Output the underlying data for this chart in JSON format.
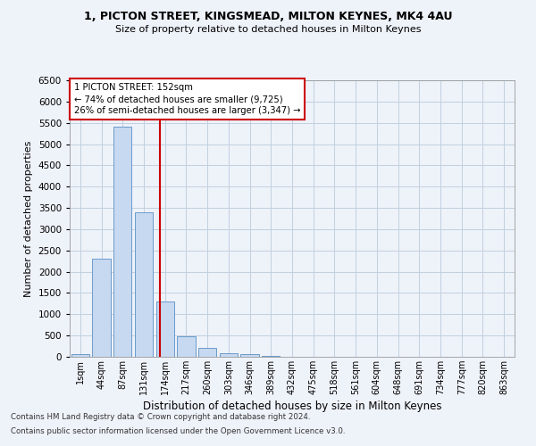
{
  "title": "1, PICTON STREET, KINGSMEAD, MILTON KEYNES, MK4 4AU",
  "subtitle": "Size of property relative to detached houses in Milton Keynes",
  "xlabel": "Distribution of detached houses by size in Milton Keynes",
  "ylabel": "Number of detached properties",
  "bin_labels": [
    "1sqm",
    "44sqm",
    "87sqm",
    "131sqm",
    "174sqm",
    "217sqm",
    "260sqm",
    "303sqm",
    "346sqm",
    "389sqm",
    "432sqm",
    "475sqm",
    "518sqm",
    "561sqm",
    "604sqm",
    "648sqm",
    "691sqm",
    "734sqm",
    "777sqm",
    "820sqm",
    "863sqm"
  ],
  "bar_values": [
    70,
    2300,
    5400,
    3400,
    1300,
    480,
    200,
    90,
    70,
    30,
    10,
    5,
    3,
    2,
    1,
    1,
    0,
    0,
    0,
    0,
    0
  ],
  "bar_color": "#c6d9f0",
  "bar_edgecolor": "#5a8fc3",
  "grid_color": "#c0d0e0",
  "background_color": "#eef2f9",
  "red_line_x": 3.74,
  "property_label": "1 PICTON STREET: 152sqm",
  "annotation_line1": "← 74% of detached houses are smaller (9,725)",
  "annotation_line2": "26% of semi-detached houses are larger (3,347) →",
  "annotation_box_color": "#ffffff",
  "annotation_edge_color": "#cc0000",
  "red_line_color": "#cc0000",
  "ylim": [
    0,
    6500
  ],
  "yticks": [
    0,
    500,
    1000,
    1500,
    2000,
    2500,
    3000,
    3500,
    4000,
    4500,
    5000,
    5500,
    6000,
    6500
  ],
  "footer1": "Contains HM Land Registry data © Crown copyright and database right 2024.",
  "footer2": "Contains public sector information licensed under the Open Government Licence v3.0."
}
